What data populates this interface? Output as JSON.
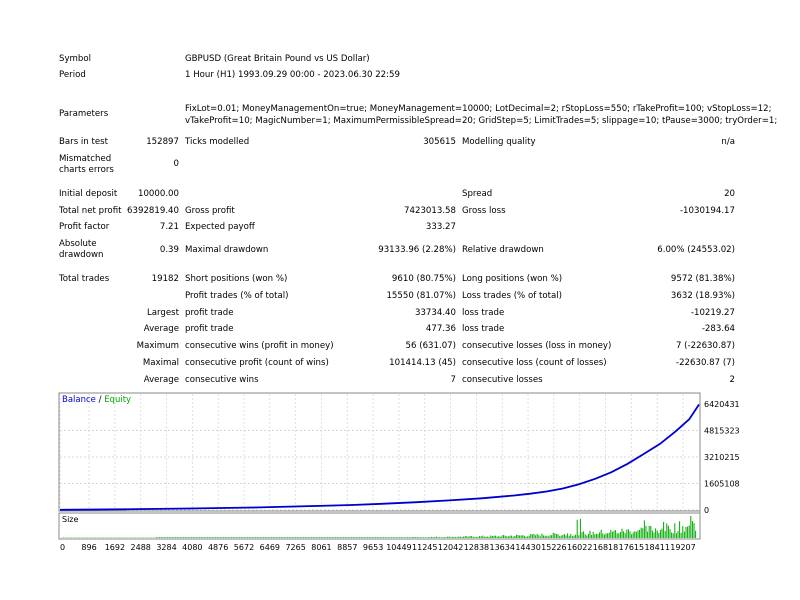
{
  "report": {
    "symbol_label": "Symbol",
    "symbol_value": "GBPUSD (Great Britain Pound vs US Dollar)",
    "period_label": "Period",
    "period_value": "1 Hour (H1) 1993.09.29 00:00 - 2023.06.30 22:59",
    "parameters_label": "Parameters",
    "parameters_line1": "FixLot=0.01; MoneyManagementOn=true; MoneyManagement=10000; LotDecimal=2; rStopLoss=550; rTakeProfit=100; vStopLoss=12;",
    "parameters_line2": "vTakeProfit=10; MagicNumber=1; MaximumPermissibleSpread=20; GridStep=5; LimitTrades=5; slippage=10; tPause=3000; tryOrder=1;",
    "bars_label": "Bars in test",
    "bars_value": "152897",
    "ticks_label": "Ticks modelled",
    "ticks_value": "305615",
    "quality_label": "Modelling quality",
    "quality_value": "n/a",
    "mismatched_label_1": "Mismatched",
    "mismatched_label_2": "charts errors",
    "mismatched_value": "0",
    "deposit_label": "Initial deposit",
    "deposit_value": "10000.00",
    "spread_label": "Spread",
    "spread_value": "20",
    "net_label": "Total net profit",
    "net_value": "6392819.40",
    "gross_profit_label": "Gross profit",
    "gross_profit_value": "7423013.58",
    "gross_loss_label": "Gross loss",
    "gross_loss_value": "-1030194.17",
    "pf_label": "Profit factor",
    "pf_value": "7.21",
    "ep_label": "Expected payoff",
    "ep_value": "333.27",
    "abs_dd_label_1": "Absolute",
    "abs_dd_label_2": "drawdown",
    "abs_dd_value": "0.39",
    "max_dd_label": "Maximal drawdown",
    "max_dd_value": "93133.96 (2.28%)",
    "rel_dd_label": "Relative drawdown",
    "rel_dd_value": "6.00% (24553.02)",
    "trades_label": "Total trades",
    "trades_value": "19182",
    "short_label": "Short positions (won %)",
    "short_value": "9610 (80.75%)",
    "long_label": "Long positions (won %)",
    "long_value": "9572 (81.38%)",
    "profit_trades_label": "Profit trades (% of total)",
    "profit_trades_value": "15550 (81.07%)",
    "loss_trades_label": "Loss trades (% of total)",
    "loss_trades_value": "3632 (18.93%)",
    "largest_label": "Largest",
    "largest_profit_label": "profit trade",
    "largest_profit_value": "33734.40",
    "largest_loss_label": "loss trade",
    "largest_loss_value": "-10219.27",
    "average_label": "Average",
    "average_profit_label": "profit trade",
    "average_profit_value": "477.36",
    "average_loss_label": "loss trade",
    "average_loss_value": "-283.64",
    "maximum_label": "Maximum",
    "max_cons_wins_label": "consecutive wins (profit in money)",
    "max_cons_wins_value": "56 (631.07)",
    "max_cons_losses_label": "consecutive losses (loss in money)",
    "max_cons_losses_value": "7 (-22630.87)",
    "maximal_label": "Maximal",
    "maximal_cons_profit_label": "consecutive profit (count of wins)",
    "maximal_cons_profit_value": "101414.13 (45)",
    "maximal_cons_loss_label": "consecutive loss (count of losses)",
    "maximal_cons_loss_value": "-22630.87 (7)",
    "average2_label": "Average",
    "avg_cons_wins_label": "consecutive wins",
    "avg_cons_wins_value": "7",
    "avg_cons_losses_label": "consecutive losses",
    "avg_cons_losses_value": "2"
  },
  "chart_data": {
    "type": "line",
    "legend": [
      {
        "name": "Balance",
        "color": "#0000cc"
      },
      {
        "name": "Equity",
        "color": "#00aa00"
      }
    ],
    "legend_separator": " / ",
    "y_ticks": [
      "6420431",
      "4815323",
      "3210215",
      "1605108",
      "0"
    ],
    "y_tick_values": [
      6420431,
      4815323,
      3210215,
      1605108,
      0
    ],
    "ylim": [
      0,
      6420431
    ],
    "x_ticks": [
      "0",
      "896",
      "1692",
      "2488",
      "3284",
      "4080",
      "4876",
      "5672",
      "6469",
      "7265",
      "8061",
      "8857",
      "9653",
      "10449",
      "11245",
      "12042",
      "12838",
      "13634",
      "14430",
      "15226",
      "16022",
      "16818",
      "17615",
      "18411",
      "19207"
    ],
    "x_tick_values": [
      0,
      896,
      1692,
      2488,
      3284,
      4080,
      4876,
      5672,
      6469,
      7265,
      8061,
      8857,
      9653,
      10449,
      11245,
      12042,
      12838,
      13634,
      14430,
      15226,
      16022,
      16818,
      17615,
      18411,
      19207
    ],
    "xlim": [
      0,
      19700
    ],
    "series": [
      {
        "name": "Balance",
        "color": "#0000cc",
        "x": [
          0,
          2000,
          4000,
          6000,
          8000,
          9000,
          10000,
          11000,
          12000,
          13000,
          14000,
          14500,
          15000,
          15500,
          16000,
          16500,
          17000,
          17500,
          18000,
          18500,
          19000,
          19400,
          19700
        ],
        "y": [
          10000,
          40000,
          90000,
          150000,
          250000,
          300000,
          380000,
          470000,
          580000,
          710000,
          880000,
          990000,
          1120000,
          1300000,
          1560000,
          1890000,
          2290000,
          2800000,
          3400000,
          4010000,
          4800000,
          5500000,
          6392819
        ]
      },
      {
        "name": "Equity",
        "color": "#00aa00",
        "x": [
          0,
          2000,
          4000,
          6000,
          8000,
          9000,
          10000,
          11000,
          12000,
          13000,
          14000,
          14500,
          15000,
          15500,
          16000,
          16500,
          17000,
          17500,
          18000,
          18500,
          19000,
          19400,
          19700
        ],
        "y": [
          10000,
          40000,
          90000,
          150000,
          250000,
          300000,
          380000,
          470000,
          580000,
          710000,
          880000,
          990000,
          1120000,
          1300000,
          1560000,
          1890000,
          2290000,
          2800000,
          3400000,
          4010000,
          4800000,
          5500000,
          6392819
        ]
      }
    ],
    "volume_label": "Size",
    "volume_color": "#00aa00"
  }
}
